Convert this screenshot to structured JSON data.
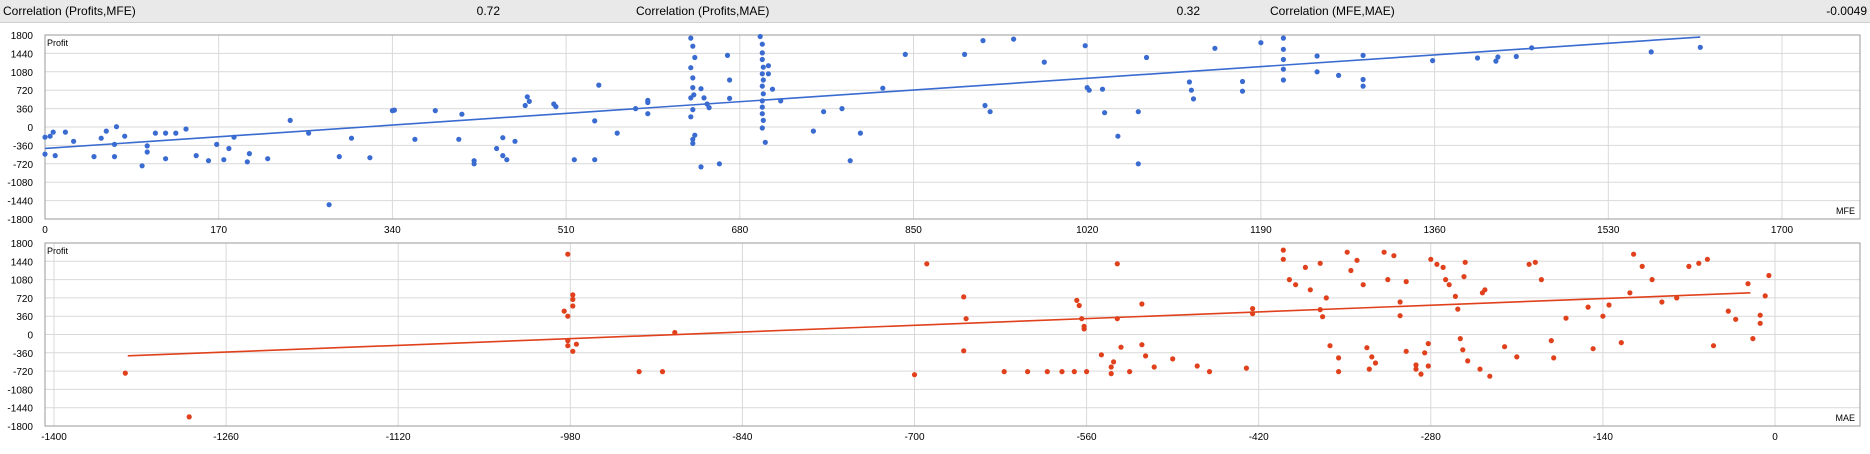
{
  "stats": [
    {
      "label": "Correlation (Profits,MFE)",
      "value": "0.72"
    },
    {
      "label": "Correlation (Profits,MAE)",
      "value": "0.32"
    },
    {
      "label": "Correlation (MFE,MAE)",
      "value": "-0.0049"
    }
  ],
  "colors": {
    "mfe": "#3a6bd0",
    "mae": "#e0411c",
    "grid": "#d9d9d9",
    "frame": "#9a9a9a"
  },
  "chart_data": [
    {
      "type": "scatter",
      "ylabel": "Profit",
      "xlabel": "MFE",
      "xlim": [
        0,
        1700
      ],
      "ylim": [
        -1800,
        1800
      ],
      "xticks": [
        "0",
        "170",
        "340",
        "510",
        "680",
        "850",
        "1020",
        "1190",
        "1360",
        "1530",
        "1700"
      ],
      "yticks": [
        "1800",
        "1440",
        "1080",
        "720",
        "360",
        "0",
        "-360",
        "-720",
        "-1080",
        "-1440",
        "-1800"
      ],
      "grid": true,
      "trendline": {
        "x": [
          0,
          1620
        ],
        "y": [
          -420,
          1760
        ]
      },
      "points": [
        [
          0,
          -200
        ],
        [
          0,
          -530
        ],
        [
          5,
          -180
        ],
        [
          10,
          -560
        ],
        [
          8,
          -100
        ],
        [
          20,
          -100
        ],
        [
          28,
          -280
        ],
        [
          48,
          -580
        ],
        [
          55,
          -220
        ],
        [
          60,
          -80
        ],
        [
          68,
          -580
        ],
        [
          68,
          -340
        ],
        [
          70,
          5
        ],
        [
          78,
          -180
        ],
        [
          95,
          -760
        ],
        [
          100,
          -490
        ],
        [
          100,
          -370
        ],
        [
          108,
          -120
        ],
        [
          118,
          -120
        ],
        [
          118,
          -620
        ],
        [
          128,
          -120
        ],
        [
          138,
          -40
        ],
        [
          148,
          -560
        ],
        [
          160,
          -660
        ],
        [
          168,
          -340
        ],
        [
          175,
          -640
        ],
        [
          180,
          -420
        ],
        [
          185,
          -200
        ],
        [
          198,
          -680
        ],
        [
          200,
          -520
        ],
        [
          218,
          -620
        ],
        [
          240,
          130
        ],
        [
          258,
          -120
        ],
        [
          278,
          -1520
        ],
        [
          288,
          -580
        ],
        [
          300,
          -220
        ],
        [
          318,
          -600
        ],
        [
          340,
          320
        ],
        [
          342,
          330
        ],
        [
          362,
          -240
        ],
        [
          382,
          320
        ],
        [
          405,
          -240
        ],
        [
          408,
          250
        ],
        [
          420,
          -720
        ],
        [
          420,
          -660
        ],
        [
          442,
          -420
        ],
        [
          448,
          -210
        ],
        [
          448,
          -560
        ],
        [
          452,
          -640
        ],
        [
          460,
          -280
        ],
        [
          470,
          420
        ],
        [
          472,
          590
        ],
        [
          474,
          500
        ],
        [
          498,
          450
        ],
        [
          500,
          400
        ],
        [
          518,
          -640
        ],
        [
          538,
          120
        ],
        [
          538,
          -640
        ],
        [
          542,
          820
        ],
        [
          560,
          -120
        ],
        [
          578,
          360
        ],
        [
          590,
          480
        ],
        [
          590,
          520
        ],
        [
          590,
          260
        ],
        [
          632,
          1740
        ],
        [
          634,
          1580
        ],
        [
          636,
          1360
        ],
        [
          632,
          1160
        ],
        [
          634,
          960
        ],
        [
          634,
          770
        ],
        [
          635,
          630
        ],
        [
          632,
          570
        ],
        [
          634,
          340
        ],
        [
          632,
          200
        ],
        [
          636,
          -160
        ],
        [
          634,
          -240
        ],
        [
          634,
          -320
        ],
        [
          642,
          -780
        ],
        [
          642,
          750
        ],
        [
          645,
          570
        ],
        [
          648,
          450
        ],
        [
          650,
          380
        ],
        [
          660,
          -720
        ],
        [
          668,
          1400
        ],
        [
          670,
          920
        ],
        [
          670,
          560
        ],
        [
          700,
          1770
        ],
        [
          702,
          1620
        ],
        [
          702,
          1450
        ],
        [
          702,
          1320
        ],
        [
          703,
          1170
        ],
        [
          702,
          1040
        ],
        [
          703,
          920
        ],
        [
          702,
          800
        ],
        [
          703,
          650
        ],
        [
          702,
          510
        ],
        [
          702,
          390
        ],
        [
          702,
          260
        ],
        [
          703,
          130
        ],
        [
          702,
          -20
        ],
        [
          705,
          -300
        ],
        [
          708,
          1200
        ],
        [
          708,
          1040
        ],
        [
          712,
          740
        ],
        [
          720,
          510
        ],
        [
          752,
          -80
        ],
        [
          762,
          300
        ],
        [
          780,
          360
        ],
        [
          788,
          -660
        ],
        [
          798,
          -120
        ],
        [
          820,
          760
        ],
        [
          842,
          1420
        ],
        [
          900,
          1420
        ],
        [
          918,
          1690
        ],
        [
          920,
          420
        ],
        [
          925,
          300
        ],
        [
          948,
          1720
        ],
        [
          978,
          1270
        ],
        [
          1018,
          1590
        ],
        [
          1020,
          770
        ],
        [
          1022,
          720
        ],
        [
          1035,
          740
        ],
        [
          1037,
          280
        ],
        [
          1050,
          -180
        ],
        [
          1070,
          300
        ],
        [
          1070,
          -720
        ],
        [
          1078,
          1360
        ],
        [
          1120,
          880
        ],
        [
          1122,
          720
        ],
        [
          1124,
          550
        ],
        [
          1145,
          1540
        ],
        [
          1172,
          700
        ],
        [
          1172,
          890
        ],
        [
          1190,
          1650
        ],
        [
          1212,
          1740
        ],
        [
          1212,
          1520
        ],
        [
          1212,
          1320
        ],
        [
          1212,
          1130
        ],
        [
          1212,
          920
        ],
        [
          1245,
          1080
        ],
        [
          1245,
          1390
        ],
        [
          1266,
          1010
        ],
        [
          1290,
          1400
        ],
        [
          1290,
          930
        ],
        [
          1290,
          800
        ],
        [
          1358,
          1300
        ],
        [
          1402,
          1350
        ],
        [
          1420,
          1290
        ],
        [
          1422,
          1370
        ],
        [
          1440,
          1380
        ],
        [
          1455,
          1550
        ],
        [
          1572,
          1470
        ],
        [
          1620,
          1560
        ]
      ]
    },
    {
      "type": "scatter",
      "ylabel": "Profit",
      "xlabel": "MAE",
      "xlim": [
        -1400,
        0
      ],
      "ylim": [
        -1800,
        1800
      ],
      "xticks": [
        "-1400",
        "-1260",
        "-1120",
        "-980",
        "-840",
        "-700",
        "-560",
        "-420",
        "-280",
        "-140",
        "0"
      ],
      "yticks": [
        "1800",
        "1440",
        "1080",
        "720",
        "360",
        "0",
        "-360",
        "-720",
        "-1080",
        "-1440",
        "-1800"
      ],
      "grid": true,
      "trendline": {
        "x": [
          -1340,
          -20
        ],
        "y": [
          -420,
          820
        ]
      },
      "points": [
        [
          -1342,
          -760
        ],
        [
          -1290,
          -1620
        ],
        [
          -982,
          1580
        ],
        [
          -985,
          460
        ],
        [
          -982,
          360
        ],
        [
          -982,
          -120
        ],
        [
          -982,
          -220
        ],
        [
          -978,
          780
        ],
        [
          -978,
          690
        ],
        [
          -978,
          560
        ],
        [
          -975,
          -190
        ],
        [
          -978,
          -330
        ],
        [
          -924,
          -730
        ],
        [
          -905,
          -730
        ],
        [
          -895,
          40
        ],
        [
          -700,
          -790
        ],
        [
          -690,
          1390
        ],
        [
          -660,
          740
        ],
        [
          -660,
          -320
        ],
        [
          -658,
          310
        ],
        [
          -627,
          -730
        ],
        [
          -608,
          -730
        ],
        [
          -592,
          -730
        ],
        [
          -580,
          -730
        ],
        [
          -570,
          -730
        ],
        [
          -568,
          670
        ],
        [
          -566,
          570
        ],
        [
          -564,
          310
        ],
        [
          -562,
          110
        ],
        [
          -562,
          160
        ],
        [
          -560,
          -730
        ],
        [
          -548,
          -400
        ],
        [
          -540,
          -770
        ],
        [
          -540,
          -640
        ],
        [
          -538,
          -540
        ],
        [
          -535,
          310
        ],
        [
          -535,
          1390
        ],
        [
          -532,
          -250
        ],
        [
          -525,
          -730
        ],
        [
          -515,
          600
        ],
        [
          -515,
          -200
        ],
        [
          -512,
          -420
        ],
        [
          -505,
          -640
        ],
        [
          -490,
          -480
        ],
        [
          -470,
          -620
        ],
        [
          -460,
          -730
        ],
        [
          -430,
          -660
        ],
        [
          -425,
          510
        ],
        [
          -425,
          410
        ],
        [
          -400,
          1660
        ],
        [
          -400,
          1480
        ],
        [
          -395,
          1080
        ],
        [
          -390,
          980
        ],
        [
          -382,
          1320
        ],
        [
          -378,
          880
        ],
        [
          -370,
          1400
        ],
        [
          -370,
          490
        ],
        [
          -368,
          350
        ],
        [
          -365,
          720
        ],
        [
          -362,
          -220
        ],
        [
          -355,
          -460
        ],
        [
          -355,
          -730
        ],
        [
          -348,
          1620
        ],
        [
          -345,
          1260
        ],
        [
          -340,
          1460
        ],
        [
          -335,
          980
        ],
        [
          -332,
          -260
        ],
        [
          -330,
          -680
        ],
        [
          -328,
          -440
        ],
        [
          -325,
          -560
        ],
        [
          -318,
          1620
        ],
        [
          -315,
          1080
        ],
        [
          -310,
          1550
        ],
        [
          -305,
          640
        ],
        [
          -305,
          370
        ],
        [
          -300,
          -330
        ],
        [
          -300,
          1040
        ],
        [
          -292,
          -680
        ],
        [
          -292,
          -600
        ],
        [
          -288,
          -780
        ],
        [
          -285,
          -360
        ],
        [
          -282,
          -180
        ],
        [
          -282,
          -620
        ],
        [
          -280,
          1480
        ],
        [
          -275,
          1380
        ],
        [
          -270,
          1320
        ],
        [
          -268,
          1080
        ],
        [
          -265,
          980
        ],
        [
          -260,
          750
        ],
        [
          -258,
          500
        ],
        [
          -256,
          -80
        ],
        [
          -254,
          -300
        ],
        [
          -253,
          1140
        ],
        [
          -252,
          1420
        ],
        [
          -250,
          -520
        ],
        [
          -240,
          -680
        ],
        [
          -238,
          820
        ],
        [
          -236,
          880
        ],
        [
          -232,
          -820
        ],
        [
          -220,
          -240
        ],
        [
          -210,
          -440
        ],
        [
          -200,
          1380
        ],
        [
          -195,
          1420
        ],
        [
          -190,
          1080
        ],
        [
          -182,
          -120
        ],
        [
          -180,
          -460
        ],
        [
          -170,
          320
        ],
        [
          -152,
          540
        ],
        [
          -148,
          -280
        ],
        [
          -140,
          360
        ],
        [
          -135,
          580
        ],
        [
          -125,
          -160
        ],
        [
          -118,
          820
        ],
        [
          -115,
          1580
        ],
        [
          -108,
          1340
        ],
        [
          -100,
          1080
        ],
        [
          -92,
          640
        ],
        [
          -80,
          720
        ],
        [
          -70,
          1340
        ],
        [
          -62,
          1400
        ],
        [
          -55,
          1480
        ],
        [
          -50,
          -220
        ],
        [
          -38,
          460
        ],
        [
          -32,
          300
        ],
        [
          -22,
          1000
        ],
        [
          -18,
          -80
        ],
        [
          -12,
          220
        ],
        [
          -12,
          380
        ],
        [
          -8,
          760
        ],
        [
          -5,
          1160
        ]
      ]
    }
  ]
}
